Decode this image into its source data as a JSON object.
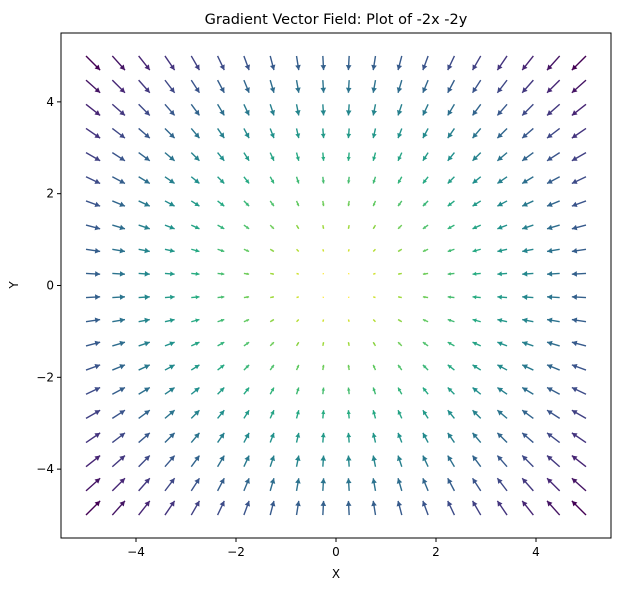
{
  "chart_data": {
    "type": "quiver",
    "title": "Gradient Vector Field: Plot of -2x -2y",
    "xlabel": "X",
    "ylabel": "Y",
    "xlim": [
      -5.5,
      5.5
    ],
    "ylim": [
      -5.5,
      5.5
    ],
    "grid": false,
    "field": {
      "u": "-2x",
      "v": "-2y"
    },
    "x_grid": {
      "start": -5,
      "stop": 5,
      "count": 20
    },
    "y_grid": {
      "start": -5,
      "stop": 5,
      "count": 20
    },
    "colormap": "viridis",
    "color_by": "magnitude",
    "xticks": [
      -4,
      -2,
      0,
      2,
      4
    ],
    "yticks": [
      -4,
      -2,
      0,
      2,
      4
    ],
    "xtick_labels": [
      "−4",
      "−2",
      "0",
      "2",
      "4"
    ],
    "ytick_labels": [
      "−4",
      "−2",
      "0",
      "2",
      "4"
    ]
  }
}
